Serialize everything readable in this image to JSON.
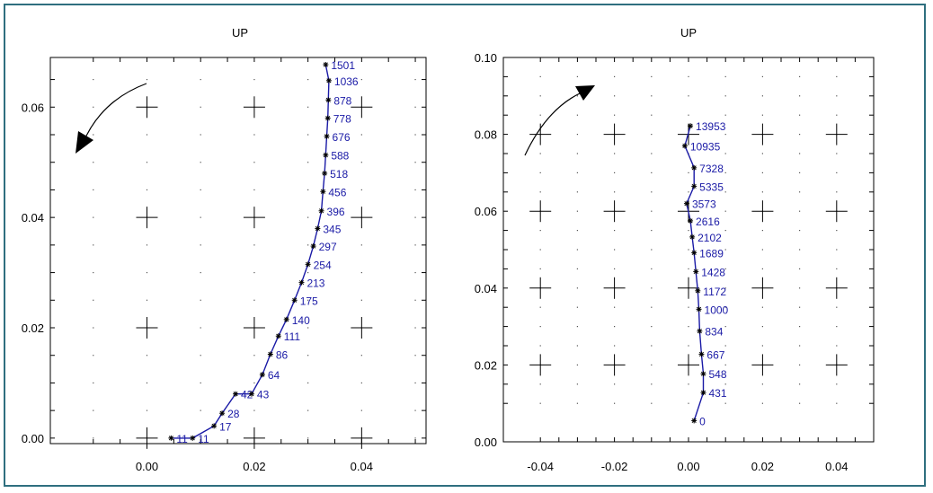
{
  "colors": {
    "trace": "#1a1aa6",
    "label": "#1a1aa6",
    "frame": "#2f6f7f",
    "axis": "#000000"
  },
  "chart_data": [
    {
      "type": "line",
      "title": "UP",
      "xlim": [
        -0.018,
        0.052
      ],
      "ylim": [
        -0.001,
        0.069
      ],
      "xticks": [
        0.0,
        0.02,
        0.04
      ],
      "xtick_labels": [
        "0.00",
        "0.02",
        "0.04"
      ],
      "yticks": [
        0.0,
        0.02,
        0.04,
        0.06
      ],
      "ytick_labels": [
        "0.00",
        "0.02",
        "0.04",
        "0.06"
      ],
      "grid": "dotted",
      "arrow": "counterclockwise",
      "series": [
        {
          "points": [
            [
              0.0045,
              0.0,
              "11"
            ],
            [
              0.0085,
              0.0,
              "11"
            ],
            [
              0.0125,
              0.0022,
              "17"
            ],
            [
              0.014,
              0.0045,
              "28"
            ],
            [
              0.0165,
              0.008,
              "42"
            ],
            [
              0.0195,
              0.008,
              "43"
            ],
            [
              0.0215,
              0.0115,
              "64"
            ],
            [
              0.023,
              0.0152,
              "86"
            ],
            [
              0.0245,
              0.0185,
              "111"
            ],
            [
              0.026,
              0.0215,
              "140"
            ],
            [
              0.0275,
              0.025,
              "175"
            ],
            [
              0.0288,
              0.0282,
              "213"
            ],
            [
              0.03,
              0.0315,
              "254"
            ],
            [
              0.031,
              0.0348,
              "297"
            ],
            [
              0.0318,
              0.038,
              "345"
            ],
            [
              0.0325,
              0.0412,
              "396"
            ],
            [
              0.0328,
              0.0447,
              "456"
            ],
            [
              0.0331,
              0.048,
              "518"
            ],
            [
              0.0333,
              0.0513,
              "588"
            ],
            [
              0.0335,
              0.0547,
              "676"
            ],
            [
              0.0337,
              0.058,
              "778"
            ],
            [
              0.0338,
              0.0613,
              "878"
            ],
            [
              0.0339,
              0.0648,
              "1036"
            ],
            [
              0.0333,
              0.0677,
              "1501"
            ]
          ]
        }
      ]
    },
    {
      "type": "line",
      "title": "UP",
      "xlim": [
        -0.05,
        0.05
      ],
      "ylim": [
        0.0,
        0.1
      ],
      "xticks": [
        -0.04,
        -0.02,
        0.0,
        0.02,
        0.04
      ],
      "xtick_labels": [
        "-0.04",
        "-0.02",
        "0.00",
        "0.02",
        "0.04"
      ],
      "yticks": [
        0.0,
        0.02,
        0.04,
        0.06,
        0.08,
        0.1
      ],
      "ytick_labels": [
        "0.00",
        "0.02",
        "0.04",
        "0.06",
        "0.08",
        "0.10"
      ],
      "grid": "dotted",
      "arrow": "clockwise",
      "series": [
        {
          "points": [
            [
              0.0015,
              0.0055,
              "0"
            ],
            [
              0.004,
              0.0128,
              "431"
            ],
            [
              0.004,
              0.0177,
              "548"
            ],
            [
              0.0035,
              0.0228,
              "667"
            ],
            [
              0.003,
              0.0288,
              "834"
            ],
            [
              0.0028,
              0.0345,
              "1000"
            ],
            [
              0.0025,
              0.0393,
              "1172"
            ],
            [
              0.002,
              0.0443,
              "1428"
            ],
            [
              0.0015,
              0.0492,
              "1689"
            ],
            [
              0.001,
              0.0533,
              "2102"
            ],
            [
              0.0005,
              0.0575,
              "2616"
            ],
            [
              -0.0005,
              0.062,
              "3573"
            ],
            [
              0.0015,
              0.0665,
              "5335"
            ],
            [
              0.0015,
              0.0713,
              "7328"
            ],
            [
              -0.001,
              0.077,
              "10935"
            ],
            [
              0.0005,
              0.0822,
              "13953"
            ]
          ]
        }
      ]
    }
  ]
}
